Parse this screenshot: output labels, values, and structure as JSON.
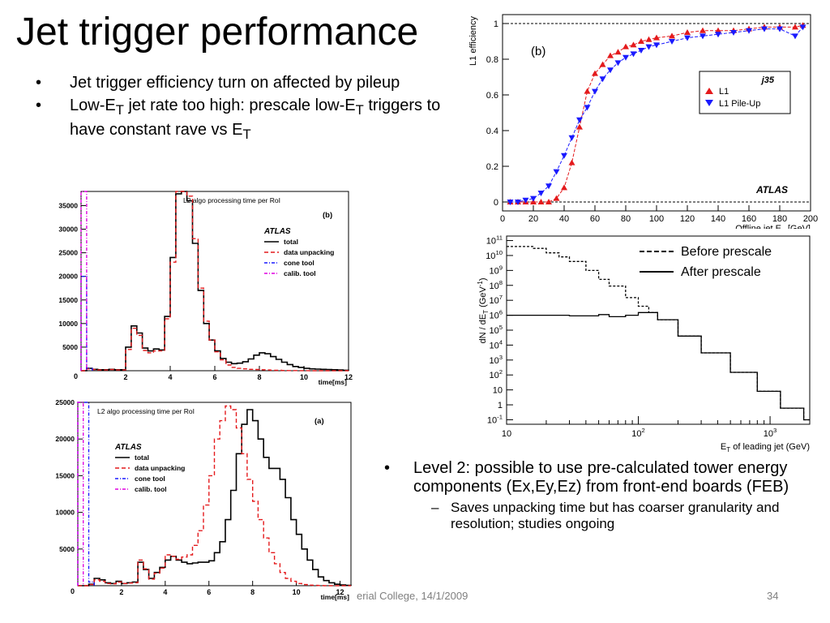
{
  "slide": {
    "title": "Jet trigger performance",
    "bullets_top": [
      "Jet trigger efficiency turn on affected by pileup",
      [
        "Low-E",
        "T",
        " jet rate too high: prescale low-E",
        "T",
        " triggers to have constant rave vs E",
        "T"
      ]
    ],
    "bullets_bottom": {
      "main": "Level 2: possible to use pre-calculated tower energy components (Ex,Ey,Ez) from front-end boards (FEB)",
      "sub": "Saves unpacking time but has coarser granularity and resolution; studies ongoing"
    },
    "footer_left": "erial College, 14/1/2009",
    "page_number": "34"
  },
  "colors": {
    "red": "#e41a1c",
    "blue": "#1a1aff",
    "magenta": "#e000e0",
    "black": "#000000"
  },
  "chart_data": [
    {
      "id": "efficiency",
      "type": "scatter",
      "panel_label": "(b)",
      "ylabel": "L1 efficiency",
      "xlabel": "Offline jet E_T [GeV]",
      "xlim": [
        0,
        200
      ],
      "ylim": [
        -0.05,
        1.05
      ],
      "xticks": [
        0,
        20,
        40,
        60,
        80,
        100,
        120,
        140,
        160,
        180,
        200
      ],
      "yticks": [
        0,
        0.2,
        0.4,
        0.6,
        0.8,
        1
      ],
      "legend_title": "j35",
      "legend_position": "right",
      "watermark": "ATLAS",
      "series": [
        {
          "name": "L1",
          "color": "red",
          "marker": "triangle-up",
          "x": [
            5,
            10,
            15,
            20,
            25,
            30,
            35,
            40,
            45,
            50,
            55,
            60,
            65,
            70,
            75,
            80,
            85,
            90,
            95,
            100,
            110,
            120,
            130,
            140,
            150,
            160,
            170,
            180,
            190,
            195
          ],
          "y": [
            0,
            0,
            0,
            0,
            0,
            0,
            0.02,
            0.08,
            0.22,
            0.42,
            0.62,
            0.72,
            0.77,
            0.82,
            0.84,
            0.87,
            0.88,
            0.9,
            0.91,
            0.92,
            0.93,
            0.95,
            0.96,
            0.96,
            0.96,
            0.97,
            0.98,
            0.98,
            0.98,
            0.99
          ]
        },
        {
          "name": "L1 Pile-Up",
          "color": "blue",
          "marker": "triangle-down",
          "x": [
            5,
            10,
            15,
            20,
            25,
            30,
            35,
            40,
            45,
            50,
            55,
            60,
            65,
            70,
            75,
            80,
            85,
            90,
            95,
            100,
            110,
            120,
            130,
            140,
            150,
            160,
            170,
            180,
            190,
            195
          ],
          "y": [
            0,
            0,
            0.01,
            0.02,
            0.05,
            0.09,
            0.17,
            0.26,
            0.36,
            0.46,
            0.53,
            0.62,
            0.69,
            0.74,
            0.78,
            0.81,
            0.83,
            0.85,
            0.87,
            0.88,
            0.9,
            0.92,
            0.93,
            0.94,
            0.95,
            0.96,
            0.97,
            0.97,
            0.93,
            0.98
          ]
        }
      ]
    },
    {
      "id": "prescale",
      "type": "line",
      "ylabel": "dN / dE_T (GeV^-1)",
      "xlabel": "E_T of leading jet (GeV)",
      "xscale": "log",
      "yscale": "log",
      "xlim": [
        10,
        2000
      ],
      "ylim": [
        0.05,
        200000000000.0
      ],
      "xticks": [
        "10",
        "10^2",
        "10^3"
      ],
      "yticks": [
        "10^-1",
        "1",
        "10",
        "10^2",
        "10^3",
        "10^4",
        "10^5",
        "10^6",
        "10^7",
        "10^8",
        "10^9",
        "10^10",
        "10^11"
      ],
      "legend_position": "top-right",
      "series": [
        {
          "name": "Before prescale",
          "style": "dashed",
          "x": [
            10,
            13,
            16,
            20,
            25,
            30,
            40,
            50,
            60,
            80,
            100,
            120,
            140,
            200,
            300,
            500,
            800,
            1200,
            1800,
            2000
          ],
          "y": [
            40000000000.0,
            40000000000.0,
            30000000000.0,
            15000000000.0,
            8000000000.0,
            4000000000.0,
            1000000000.0,
            250000000.0,
            90000000.0,
            15000000.0,
            4000000.0,
            1500000.0,
            500000.0,
            40000.0,
            3000.0,
            150,
            8,
            0.6,
            0.1,
            0.05
          ]
        },
        {
          "name": "After prescale",
          "style": "solid",
          "x": [
            10,
            20,
            30,
            40,
            50,
            60,
            80,
            100,
            120,
            140,
            200,
            300,
            500,
            800,
            1200,
            1800,
            2000
          ],
          "y": [
            1000000.0,
            1000000.0,
            900000.0,
            900000.0,
            1100000.0,
            800000.0,
            1000000.0,
            1500000.0,
            1500000.0,
            500000.0,
            40000.0,
            3000.0,
            150,
            8,
            0.6,
            0.1,
            0.05
          ]
        }
      ]
    },
    {
      "id": "l2_time_b",
      "type": "bar",
      "title": "L2 algo processing time per RoI",
      "panel_label": "(b)",
      "xlabel": "time[ms]",
      "xlim": [
        0,
        12
      ],
      "ylim": [
        0,
        38000
      ],
      "xticks": [
        0,
        2,
        4,
        6,
        8,
        10,
        12
      ],
      "yticks": [
        5000,
        10000,
        15000,
        20000,
        25000,
        30000,
        35000
      ],
      "legend_title": "ATLAS",
      "legend_position": "top-right",
      "bin_width": 0.25,
      "series": [
        {
          "name": "total",
          "color": "black",
          "style": "solid",
          "values": [
            0,
            500,
            300,
            200,
            200,
            300,
            200,
            200,
            5000,
            9500,
            8000,
            4800,
            4200,
            4600,
            4400,
            11500,
            24000,
            37500,
            38000,
            36000,
            27000,
            17000,
            10000,
            6500,
            4200,
            2600,
            1800,
            1500,
            1600,
            1900,
            2500,
            3300,
            3800,
            3600,
            3000,
            2400,
            1800,
            1300,
            900,
            700,
            500,
            400,
            350,
            300,
            250,
            200,
            150,
            100
          ]
        },
        {
          "name": "data unpacking",
          "color": "red",
          "style": "dashed",
          "values": [
            0,
            400,
            250,
            150,
            150,
            250,
            150,
            150,
            4500,
            9000,
            7500,
            4300,
            3800,
            4200,
            4200,
            11000,
            23000,
            39000,
            39500,
            37000,
            28000,
            17500,
            10500,
            6500,
            4000,
            2300,
            1200,
            700,
            500,
            400,
            300,
            250,
            200,
            150,
            100,
            80,
            60,
            40,
            30,
            20,
            10,
            0,
            0,
            0,
            0,
            0,
            0,
            0
          ]
        },
        {
          "name": "cone tool",
          "color": "blue",
          "style": "dashdot",
          "values": [
            20000,
            500
          ]
        },
        {
          "name": "calib. tool",
          "color": "magenta",
          "style": "dashdot",
          "values": [
            38000
          ]
        }
      ]
    },
    {
      "id": "l2_time_a",
      "type": "bar",
      "title": "L2 algo processing time per RoI",
      "panel_label": "(a)",
      "xlabel": "time[ms]",
      "xlim": [
        0,
        12.5
      ],
      "ylim": [
        0,
        25000
      ],
      "xticks": [
        0,
        2,
        4,
        6,
        8,
        10,
        12
      ],
      "yticks": [
        5000,
        10000,
        15000,
        20000,
        25000
      ],
      "legend_title": "ATLAS",
      "legend_position": "top-left",
      "bin_width": 0.25,
      "series": [
        {
          "name": "total",
          "color": "black",
          "style": "solid",
          "values": [
            0,
            0,
            200,
            1000,
            800,
            400,
            300,
            600,
            300,
            400,
            500,
            3200,
            2200,
            1000,
            1800,
            2500,
            3500,
            4000,
            3500,
            3200,
            3000,
            3100,
            3200,
            3200,
            3400,
            4500,
            6000,
            9000,
            13000,
            18000,
            22000,
            24000,
            22500,
            20000,
            17500,
            16000,
            16000,
            14500,
            12000,
            9000,
            7000,
            5000,
            3500,
            2200,
            1200,
            700,
            400,
            200,
            100,
            50
          ]
        },
        {
          "name": "data unpacking",
          "color": "red",
          "style": "dashed",
          "values": [
            0,
            0,
            150,
            800,
            600,
            300,
            250,
            500,
            300,
            350,
            400,
            3500,
            2300,
            900,
            1700,
            2400,
            4200,
            4000,
            3600,
            3900,
            4200,
            5500,
            7500,
            11000,
            15000,
            20000,
            22500,
            24500,
            24000,
            21500,
            18000,
            14500,
            11500,
            9000,
            6500,
            4500,
            3000,
            1800,
            1000,
            600,
            300,
            150,
            80,
            40,
            20,
            0,
            0,
            0,
            0,
            0
          ]
        },
        {
          "name": "cone tool",
          "color": "blue",
          "style": "dashdot",
          "values": [
            25000,
            25000,
            500
          ]
        },
        {
          "name": "calib. tool",
          "color": "magenta",
          "style": "dashdot",
          "values": [
            25000
          ]
        }
      ]
    }
  ]
}
